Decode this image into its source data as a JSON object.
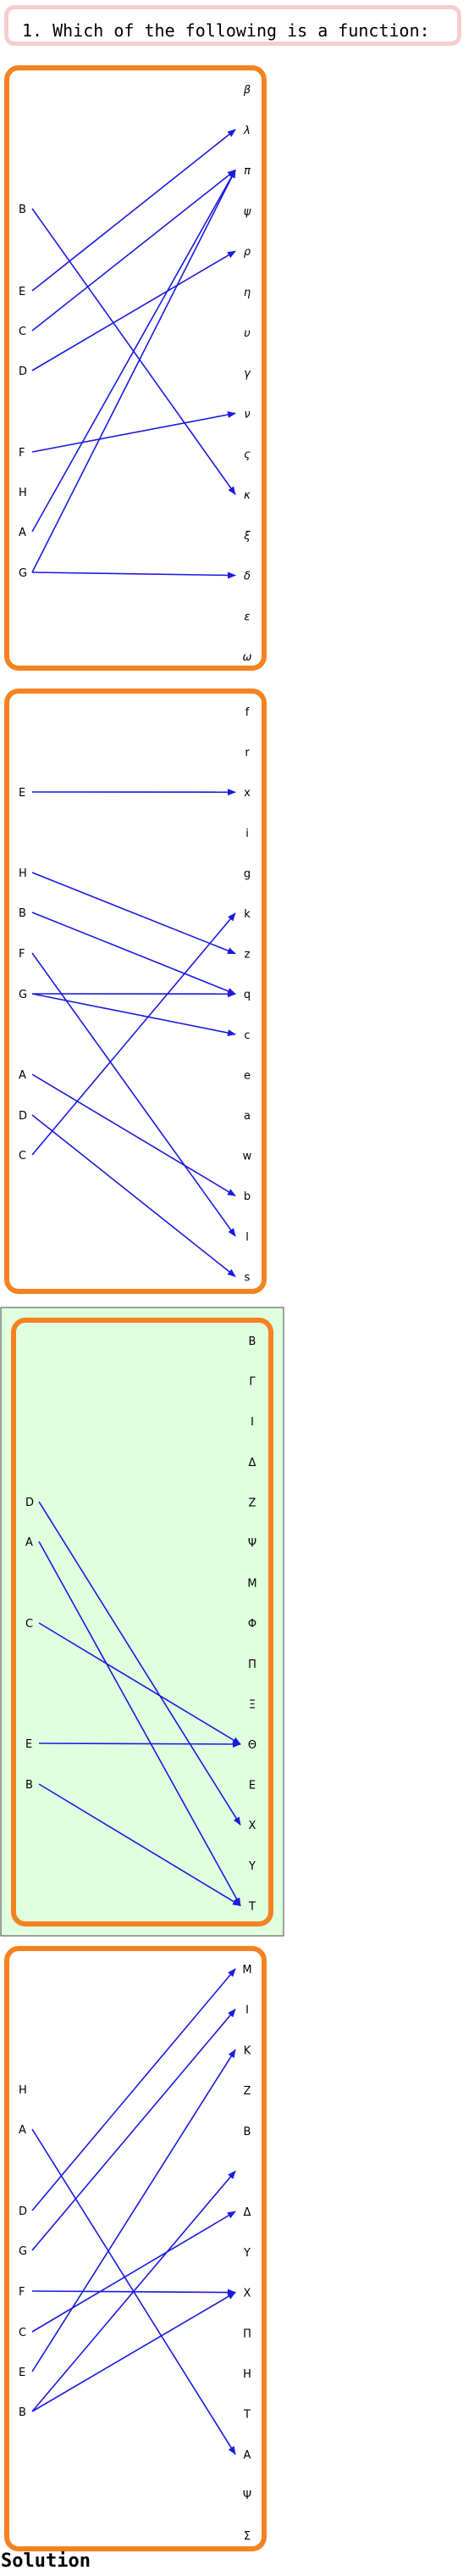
{
  "question": {
    "number": "1.",
    "text": "Which of the following is a function:"
  },
  "solution_label": "Solution",
  "colors": {
    "panel_border": "#f58220",
    "arrow": "#1a1adf",
    "answer_bg": "#dfffdf",
    "question_border": "#f6cccc"
  },
  "panels": [
    {
      "id": "panel-1",
      "is_answer": false,
      "greek": true,
      "left": [
        "B",
        "E",
        "C",
        "D",
        "F",
        "H",
        "A",
        "G"
      ],
      "right": [
        "β",
        "λ",
        "π",
        "ψ",
        "ρ",
        "η",
        "υ",
        "γ",
        "ν",
        "ς",
        "κ",
        "ξ",
        "δ",
        "ε",
        "ω"
      ],
      "arrows": [
        [
          "B",
          "κ"
        ],
        [
          "E",
          "λ"
        ],
        [
          "C",
          "π"
        ],
        [
          "D",
          "ρ"
        ],
        [
          "F",
          "ν"
        ],
        [
          "A",
          "π"
        ],
        [
          "G",
          "π"
        ],
        [
          "G",
          "δ"
        ]
      ]
    },
    {
      "id": "panel-2",
      "is_answer": false,
      "greek": false,
      "left": [
        "E",
        "H",
        "B",
        "F",
        "G",
        "A",
        "D",
        "C"
      ],
      "right": [
        "f",
        "r",
        "x",
        "i",
        "g",
        "k",
        "z",
        "q",
        "c",
        "e",
        "a",
        "w",
        "b",
        "l",
        "s"
      ],
      "arrows": [
        [
          "E",
          "x"
        ],
        [
          "H",
          "z"
        ],
        [
          "B",
          "q"
        ],
        [
          "F",
          "l"
        ],
        [
          "G",
          "q"
        ],
        [
          "G",
          "c"
        ],
        [
          "A",
          "b"
        ],
        [
          "D",
          "s"
        ],
        [
          "C",
          "k"
        ]
      ]
    },
    {
      "id": "panel-3",
      "is_answer": true,
      "greek": false,
      "left": [
        "D",
        "A",
        "C",
        "E",
        "B"
      ],
      "right": [
        "B",
        "Γ",
        "I",
        "Δ",
        "Z",
        "Ψ",
        "M",
        "Φ",
        "Π",
        "Ξ",
        "Θ",
        "E",
        "X",
        "Y",
        "T"
      ],
      "arrows": [
        [
          "D",
          "X"
        ],
        [
          "A",
          "T"
        ],
        [
          "C",
          "Θ"
        ],
        [
          "E",
          "Θ"
        ],
        [
          "B",
          "T"
        ]
      ]
    },
    {
      "id": "panel-4",
      "is_answer": false,
      "greek": false,
      "left": [
        "H",
        "A",
        "D",
        "G",
        "F",
        "C",
        "E",
        "B"
      ],
      "right": [
        "M",
        "I",
        "K",
        "Z",
        "B",
        "",
        "Δ",
        "Y",
        "X",
        "Π",
        "H",
        "T",
        "A",
        "Ψ",
        "Σ"
      ],
      "arrows": [
        [
          "A",
          "A"
        ],
        [
          "D",
          "M"
        ],
        [
          "G",
          "I"
        ],
        [
          "F",
          "X"
        ],
        [
          "C",
          "Δ"
        ],
        [
          "E",
          "K"
        ],
        [
          "B",
          "X"
        ],
        [
          "B",
          "Δ_gap"
        ]
      ]
    }
  ]
}
